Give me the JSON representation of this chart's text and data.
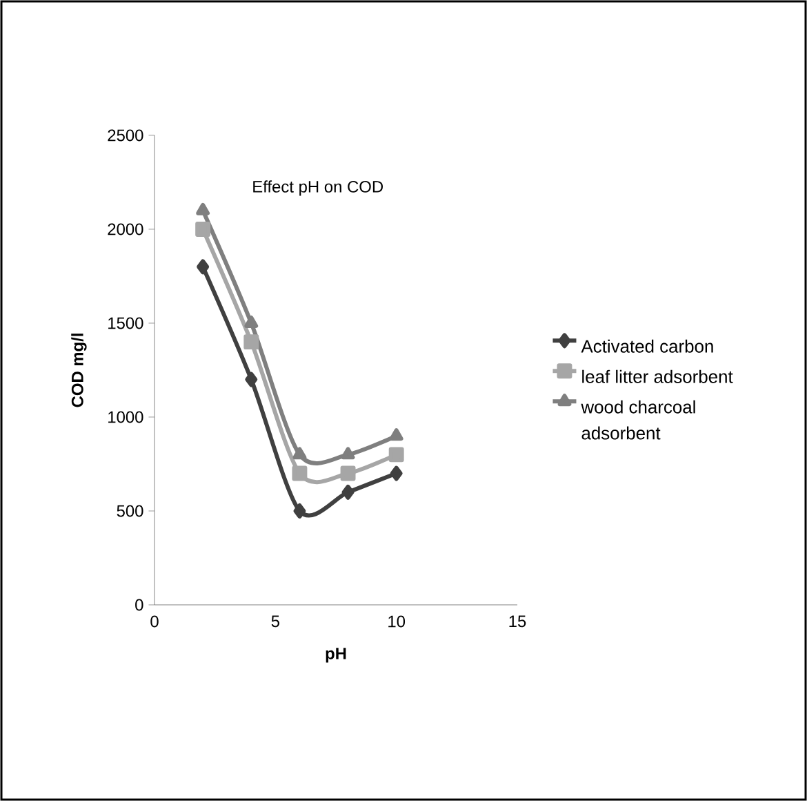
{
  "chart_data": {
    "type": "line",
    "title": "Effect pH on COD",
    "xlabel": "pH",
    "ylabel": "COD mg/l",
    "xlim": [
      0,
      15
    ],
    "xticks": [
      0,
      5,
      10,
      15
    ],
    "ylim": [
      0,
      2500
    ],
    "yticks": [
      0,
      500,
      1000,
      1500,
      2000,
      2500
    ],
    "grid": false,
    "legend": "right",
    "line_style": "solid",
    "series": [
      {
        "name": "Activated carbon",
        "color": "#404040",
        "marker": "diamond",
        "x": [
          2,
          4,
          6,
          8,
          10
        ],
        "values": [
          1800,
          1200,
          500,
          600,
          700
        ]
      },
      {
        "name": "leaf litter adsorbent",
        "color": "#a6a6a6",
        "marker": "square",
        "x": [
          2,
          4,
          6,
          8,
          10
        ],
        "values": [
          2000,
          1400,
          700,
          700,
          800
        ]
      },
      {
        "name": "wood charcoal adsorbent",
        "color": "#7f7f7f",
        "marker": "triangle",
        "x": [
          2,
          4,
          6,
          8,
          10
        ],
        "values": [
          2100,
          1500,
          800,
          800,
          900
        ]
      }
    ]
  }
}
